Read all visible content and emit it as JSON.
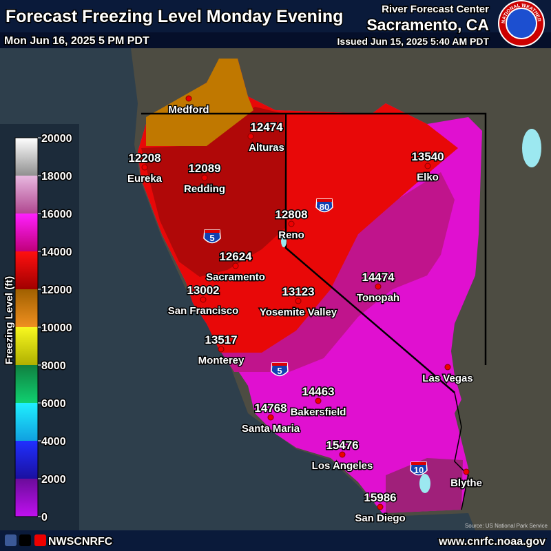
{
  "header": {
    "title": "Forecast Freezing Level Monday Evening",
    "valid_time": "Mon Jun 16, 2025 5 PM PDT",
    "center": "River Forecast Center",
    "office": "Sacramento, CA",
    "issued": "Issued Jun 15, 2025 5:40 AM PDT",
    "logo_text": "NATIONAL WEATHER SERVICE"
  },
  "legend": {
    "label": "Freezing Level (ft)",
    "range": [
      0,
      20000
    ],
    "ticks": [
      0,
      2000,
      4000,
      6000,
      8000,
      10000,
      12000,
      14000,
      16000,
      18000,
      20000
    ]
  },
  "cities": [
    {
      "name": "Medford"
    },
    {
      "name": "Alturas",
      "value": 12474
    },
    {
      "name": "Eureka",
      "value": 12208
    },
    {
      "name": "Redding",
      "value": 12089
    },
    {
      "name": "Elko",
      "value": 13540
    },
    {
      "name": "Reno",
      "value": 12808
    },
    {
      "name": "Sacramento",
      "value": 12624
    },
    {
      "name": "San Francisco",
      "value": 13002
    },
    {
      "name": "Yosemite Valley",
      "value": 13123
    },
    {
      "name": "Tonopah",
      "value": 14474
    },
    {
      "name": "Monterey",
      "value": 13517
    },
    {
      "name": "Las Vegas"
    },
    {
      "name": "Bakersfield",
      "value": 14463
    },
    {
      "name": "Santa Maria",
      "value": 14768
    },
    {
      "name": "Los Angeles",
      "value": 15476
    },
    {
      "name": "Blythe"
    },
    {
      "name": "San Diego",
      "value": 15986
    }
  ],
  "interstates": [
    "5",
    "80",
    "5",
    "10"
  ],
  "source": "Source: US National Park Service",
  "footer": {
    "handle": "NWSCNRFC",
    "url": "www.cnrfc.noaa.gov"
  }
}
